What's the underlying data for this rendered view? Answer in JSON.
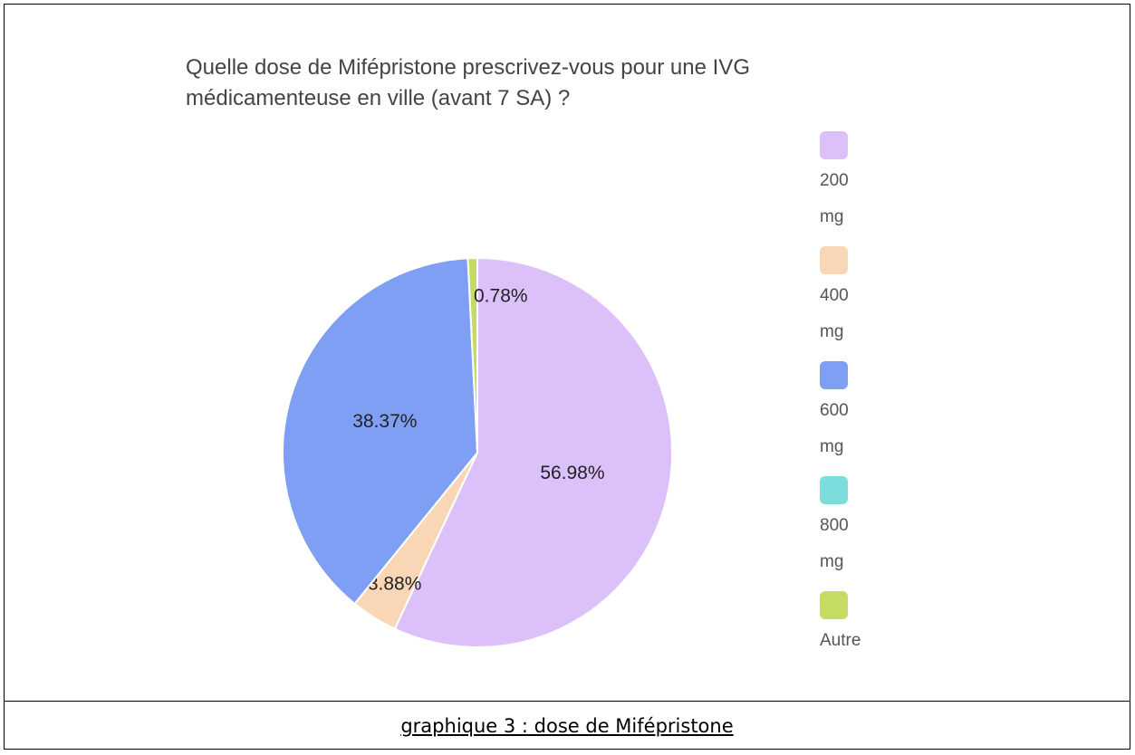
{
  "chart_data": {
    "type": "pie",
    "title": "Quelle dose de Mifépristone prescrivez-vous pour une IVG médicamenteuse en ville (avant 7 SA) ?",
    "categories": [
      "200 mg",
      "400 mg",
      "600 mg",
      "800 mg",
      "Autre"
    ],
    "values": [
      56.98,
      3.88,
      38.37,
      0,
      0.78
    ],
    "value_labels": [
      "56.98%",
      "3.88%",
      "38.37%",
      null,
      "0.78%"
    ],
    "colors": [
      "#dcc0fa",
      "#f9d7b6",
      "#7f9ff5",
      "#7ddcdc",
      "#c5dc62"
    ],
    "legend": "right"
  },
  "caption": "graphique 3 : dose de Mifépristone"
}
